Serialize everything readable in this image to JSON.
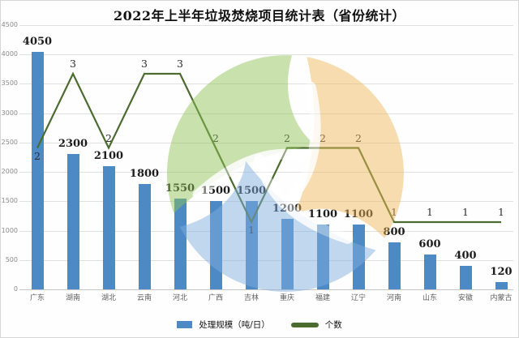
{
  "title": "2022年上半年垃圾焚烧项目统计表（省份统计）",
  "legend": {
    "bar_label": "处理规模（吨/日）",
    "line_label": "个数"
  },
  "colors": {
    "bar": "#4d8ac5",
    "line": "#4c6b2f",
    "watermark_green": "#8ec356",
    "watermark_orange": "#eeb858",
    "watermark_blue": "#80aede"
  },
  "watermark": {
    "name": "three-leaf-recycle-logo"
  },
  "chart_data": {
    "type": "bar",
    "title": "2022年上半年垃圾焚烧项目统计表（省份统计）",
    "categories": [
      "广东",
      "湖南",
      "湖北",
      "云南",
      "河北",
      "广西",
      "吉林",
      "重庆",
      "福建",
      "辽宁",
      "河南",
      "山东",
      "安徽",
      "内蒙古"
    ],
    "series": [
      {
        "name": "处理规模（吨/日）",
        "type": "bar",
        "values": [
          4050,
          2300,
          2100,
          1800,
          1550,
          1500,
          1500,
          1200,
          1100,
          1100,
          800,
          600,
          400,
          120
        ]
      },
      {
        "name": "个数",
        "type": "line",
        "values": [
          2,
          3,
          2,
          3,
          3,
          2,
          1,
          2,
          2,
          2,
          1,
          1,
          1,
          1
        ],
        "label_positions": [
          "below",
          "above",
          "above",
          "above",
          "above",
          "above",
          "below",
          "above",
          "above",
          "above",
          "above",
          "above",
          "above",
          "above"
        ]
      }
    ],
    "xlabel": "",
    "ylabel": "",
    "ylim": [
      0,
      4500
    ],
    "y_ticks": [
      0,
      500,
      1000,
      1500,
      2000,
      2500,
      3000,
      3500,
      4000,
      4500
    ],
    "grid": true,
    "legend_position": "bottom"
  }
}
